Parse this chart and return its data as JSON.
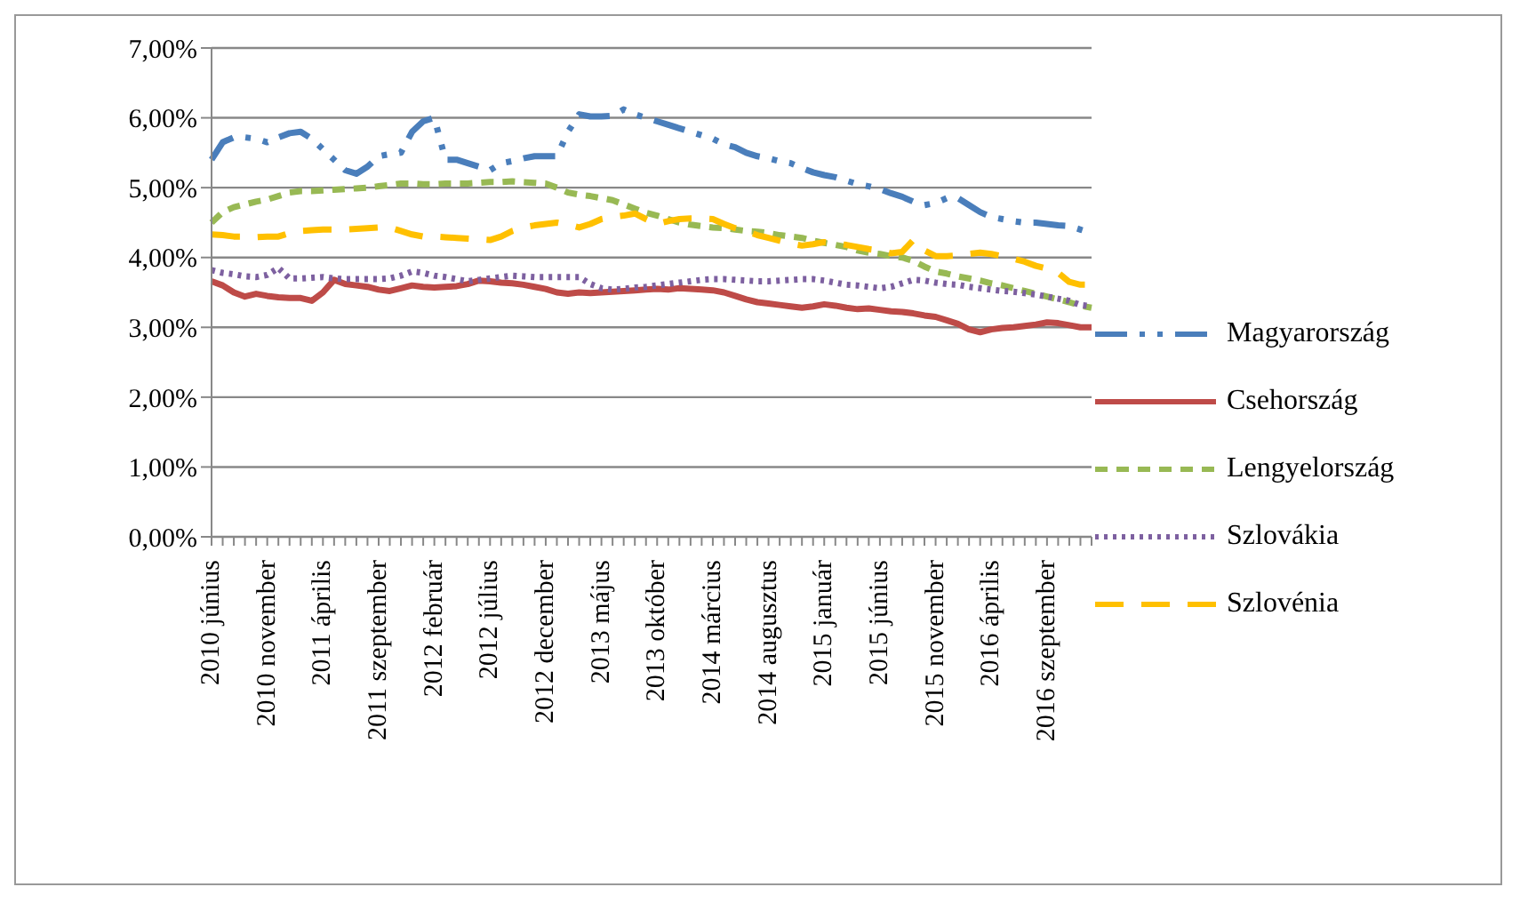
{
  "chart_data": {
    "type": "line",
    "categories": [
      "2010 június",
      null,
      null,
      null,
      null,
      "2010 november",
      null,
      null,
      null,
      null,
      "2011 április",
      null,
      null,
      null,
      null,
      "2011 szeptember",
      null,
      null,
      null,
      null,
      "2012 február",
      null,
      null,
      null,
      null,
      "2012 július",
      null,
      null,
      null,
      null,
      "2012 december",
      null,
      null,
      null,
      null,
      "2013 május",
      null,
      null,
      null,
      null,
      "2013 október",
      null,
      null,
      null,
      null,
      "2014 március",
      null,
      null,
      null,
      null,
      "2014 augusztus",
      null,
      null,
      null,
      null,
      "2015 január",
      null,
      null,
      null,
      null,
      "2015 június",
      null,
      null,
      null,
      null,
      "2015 november",
      null,
      null,
      null,
      null,
      "2016 április",
      null,
      null,
      null,
      null,
      "2016 szeptember",
      null,
      null,
      null,
      null
    ],
    "series": [
      {
        "name": "Magyarország",
        "color": "#4a7ebb",
        "line_style": "dashed",
        "values": [
          5.4,
          5.65,
          5.72,
          5.72,
          5.7,
          5.65,
          5.72,
          5.78,
          5.8,
          5.7,
          5.55,
          5.4,
          5.25,
          5.2,
          5.3,
          5.45,
          5.48,
          5.5,
          5.8,
          5.95,
          6.0,
          5.4,
          5.4,
          5.35,
          5.3,
          5.25,
          5.35,
          5.38,
          5.42,
          5.45,
          5.45,
          5.45,
          5.8,
          6.05,
          6.02,
          6.02,
          6.03,
          6.12,
          6.05,
          6.0,
          5.95,
          5.9,
          5.85,
          5.8,
          5.75,
          5.7,
          5.62,
          5.58,
          5.5,
          5.45,
          5.42,
          5.38,
          5.35,
          5.28,
          5.22,
          5.18,
          5.15,
          5.1,
          5.05,
          5.02,
          4.98,
          4.92,
          4.87,
          4.8,
          4.75,
          4.78,
          4.85,
          4.85,
          4.75,
          4.65,
          4.58,
          4.55,
          4.52,
          4.5,
          4.5,
          4.48,
          4.46,
          4.45,
          4.4,
          4.35
        ]
      },
      {
        "name": "Csehország",
        "color": "#be4b48",
        "line_style": "solid",
        "values": [
          3.66,
          3.6,
          3.5,
          3.44,
          3.48,
          3.45,
          3.43,
          3.42,
          3.42,
          3.38,
          3.5,
          3.68,
          3.62,
          3.6,
          3.58,
          3.54,
          3.52,
          3.56,
          3.6,
          3.58,
          3.57,
          3.58,
          3.59,
          3.62,
          3.67,
          3.66,
          3.64,
          3.63,
          3.61,
          3.58,
          3.55,
          3.5,
          3.48,
          3.5,
          3.49,
          3.5,
          3.51,
          3.52,
          3.53,
          3.54,
          3.55,
          3.54,
          3.56,
          3.55,
          3.54,
          3.53,
          3.5,
          3.45,
          3.4,
          3.36,
          3.34,
          3.32,
          3.3,
          3.28,
          3.3,
          3.33,
          3.31,
          3.28,
          3.26,
          3.27,
          3.25,
          3.23,
          3.22,
          3.2,
          3.17,
          3.15,
          3.1,
          3.05,
          2.97,
          2.93,
          2.97,
          2.99,
          3.0,
          3.02,
          3.04,
          3.07,
          3.06,
          3.03,
          3.0,
          3.0
        ]
      },
      {
        "name": "Lengyelország",
        "color": "#98b954",
        "line_style": "dashed",
        "values": [
          4.5,
          4.65,
          4.72,
          4.76,
          4.8,
          4.83,
          4.88,
          4.93,
          4.95,
          4.95,
          4.96,
          4.97,
          4.98,
          4.99,
          5.0,
          5.02,
          5.04,
          5.06,
          5.06,
          5.05,
          5.05,
          5.06,
          5.06,
          5.06,
          5.07,
          5.08,
          5.08,
          5.09,
          5.08,
          5.07,
          5.06,
          5.0,
          4.93,
          4.9,
          4.88,
          4.85,
          4.82,
          4.76,
          4.7,
          4.64,
          4.6,
          4.55,
          4.5,
          4.47,
          4.45,
          4.43,
          4.42,
          4.4,
          4.38,
          4.37,
          4.35,
          4.32,
          4.3,
          4.28,
          4.24,
          4.21,
          4.18,
          4.15,
          4.1,
          4.07,
          4.05,
          4.02,
          4.0,
          3.95,
          3.87,
          3.8,
          3.77,
          3.73,
          3.7,
          3.67,
          3.63,
          3.6,
          3.56,
          3.52,
          3.48,
          3.44,
          3.4,
          3.36,
          3.31,
          3.28
        ]
      },
      {
        "name": "Szlovákia",
        "color": "#7d60a0",
        "line_style": "dotted",
        "values": [
          3.82,
          3.78,
          3.76,
          3.73,
          3.72,
          3.75,
          3.85,
          3.7,
          3.7,
          3.71,
          3.72,
          3.7,
          3.69,
          3.69,
          3.69,
          3.69,
          3.7,
          3.74,
          3.8,
          3.78,
          3.74,
          3.72,
          3.69,
          3.66,
          3.68,
          3.7,
          3.72,
          3.74,
          3.73,
          3.72,
          3.72,
          3.72,
          3.72,
          3.72,
          3.62,
          3.56,
          3.54,
          3.55,
          3.57,
          3.58,
          3.6,
          3.62,
          3.64,
          3.66,
          3.68,
          3.69,
          3.69,
          3.68,
          3.67,
          3.66,
          3.66,
          3.67,
          3.68,
          3.69,
          3.69,
          3.67,
          3.64,
          3.61,
          3.6,
          3.58,
          3.56,
          3.58,
          3.63,
          3.68,
          3.67,
          3.64,
          3.62,
          3.61,
          3.58,
          3.56,
          3.54,
          3.52,
          3.51,
          3.49,
          3.47,
          3.44,
          3.41,
          3.38,
          3.32,
          3.3
        ]
      },
      {
        "name": "Szlovénia",
        "color": "#ffc000",
        "line_style": "dashed",
        "values": [
          4.33,
          4.32,
          4.3,
          4.3,
          4.29,
          4.3,
          4.3,
          4.35,
          4.38,
          4.39,
          4.4,
          4.4,
          4.4,
          4.41,
          4.42,
          4.43,
          4.43,
          4.38,
          4.33,
          4.3,
          4.3,
          4.29,
          4.28,
          4.27,
          4.26,
          4.25,
          4.3,
          4.38,
          4.43,
          4.46,
          4.48,
          4.5,
          4.47,
          4.43,
          4.48,
          4.55,
          4.58,
          4.6,
          4.63,
          4.55,
          4.48,
          4.52,
          4.55,
          4.56,
          4.56,
          4.55,
          4.48,
          4.42,
          4.38,
          4.32,
          4.28,
          4.24,
          4.2,
          4.17,
          4.19,
          4.22,
          4.2,
          4.18,
          4.15,
          4.12,
          4.1,
          4.06,
          4.08,
          4.25,
          4.1,
          4.02,
          4.02,
          4.03,
          4.05,
          4.07,
          4.05,
          4.02,
          3.98,
          3.94,
          3.88,
          3.84,
          3.78,
          3.65,
          3.61,
          3.61
        ]
      }
    ],
    "ylim": [
      0,
      7
    ],
    "yticks": [
      {
        "value": 0,
        "label": "0,00%"
      },
      {
        "value": 1,
        "label": "1,00%"
      },
      {
        "value": 2,
        "label": "2,00%"
      },
      {
        "value": 3,
        "label": "3,00%"
      },
      {
        "value": 4,
        "label": "4,00%"
      },
      {
        "value": 5,
        "label": "5,00%"
      },
      {
        "value": 6,
        "label": "6,00%"
      },
      {
        "value": 7,
        "label": "7,00%"
      }
    ],
    "grid": "y",
    "legend": "right",
    "marker": "none"
  }
}
